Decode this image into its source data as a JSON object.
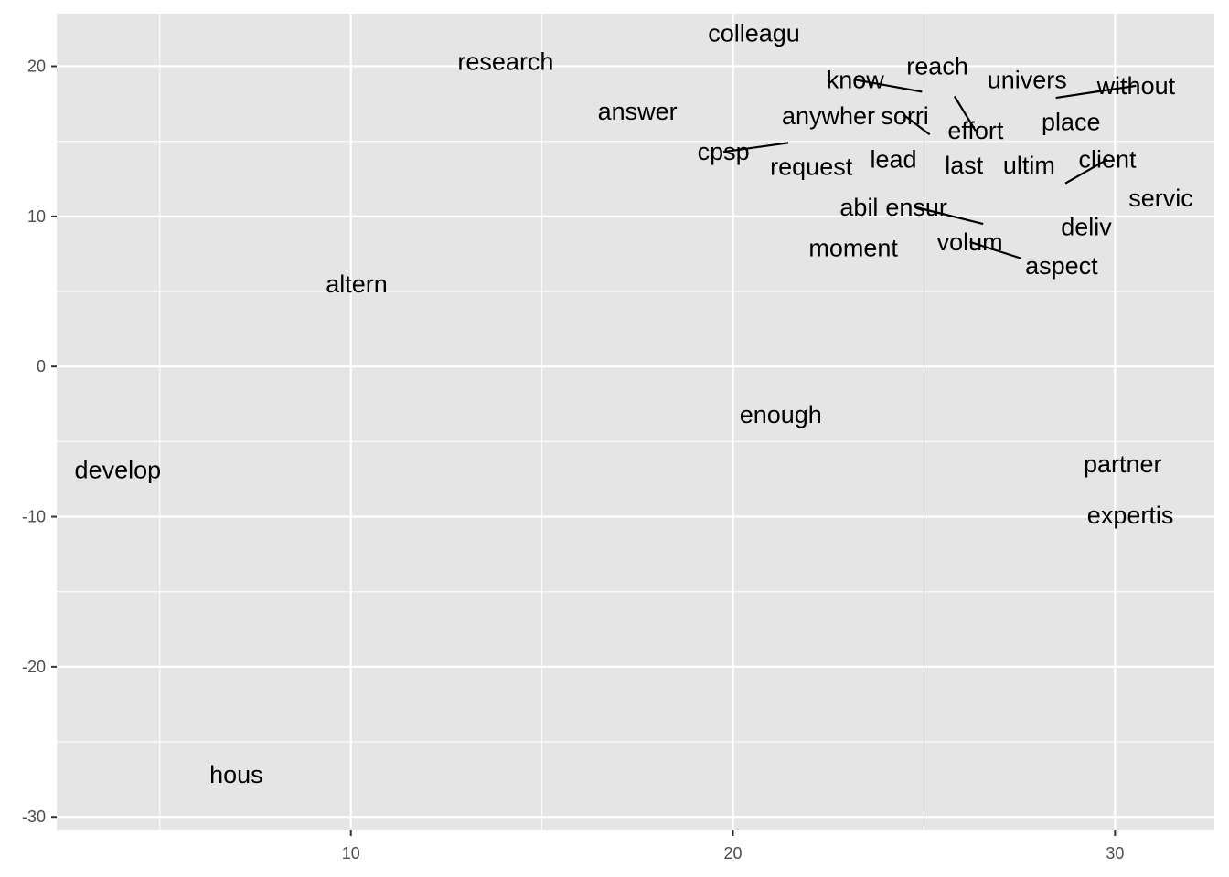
{
  "chart_data": {
    "type": "scatter",
    "title": "",
    "xlabel": "",
    "ylabel": "",
    "xlim": [
      2.3,
      32.6
    ],
    "ylim": [
      -30.9,
      23.5
    ],
    "x_ticks": [
      10,
      20,
      30
    ],
    "y_ticks": [
      -30,
      -20,
      -10,
      0,
      10,
      20
    ],
    "x_minor_ticks": [
      5,
      15,
      25
    ],
    "y_minor_ticks": [
      -25,
      -15,
      -5,
      5,
      15
    ],
    "grid": true,
    "legend": "none",
    "colors": {
      "panel": "#e5e5e5",
      "grid": "#ffffff",
      "text": "#000000",
      "tick": "#4d4d4d"
    },
    "points": [
      {
        "label": "colleagu",
        "x": 20.55,
        "y": 22.2
      },
      {
        "label": "research",
        "x": 14.05,
        "y": 20.3
      },
      {
        "label": "reach",
        "x": 25.35,
        "y": 20.0
      },
      {
        "label": "know",
        "x": 23.2,
        "y": 19.1,
        "leader_to": [
          24.95,
          18.3
        ]
      },
      {
        "label": "univers",
        "x": 27.7,
        "y": 19.1
      },
      {
        "label": "without",
        "x": 30.55,
        "y": 18.7,
        "leader_to": [
          28.45,
          17.9
        ]
      },
      {
        "label": "answer",
        "x": 17.5,
        "y": 17.0
      },
      {
        "label": "anywher",
        "x": 22.5,
        "y": 16.7
      },
      {
        "label": "sorri",
        "x": 24.5,
        "y": 16.7,
        "leader_to": [
          25.15,
          15.45
        ]
      },
      {
        "label": "place",
        "x": 28.85,
        "y": 16.3
      },
      {
        "label": "effort",
        "x": 26.35,
        "y": 15.7,
        "leader_to": [
          25.8,
          18.0
        ]
      },
      {
        "label": "cpsp",
        "x": 19.75,
        "y": 14.3,
        "leader_to": [
          21.45,
          14.9
        ]
      },
      {
        "label": "client",
        "x": 29.8,
        "y": 13.8,
        "leader_to": [
          28.7,
          12.2
        ]
      },
      {
        "label": "lead",
        "x": 24.2,
        "y": 13.8
      },
      {
        "label": "request",
        "x": 22.05,
        "y": 13.3
      },
      {
        "label": "last",
        "x": 26.05,
        "y": 13.4
      },
      {
        "label": "ultim",
        "x": 27.75,
        "y": 13.4
      },
      {
        "label": "servic",
        "x": 31.2,
        "y": 11.2
      },
      {
        "label": "abil",
        "x": 23.3,
        "y": 10.6
      },
      {
        "label": "ensur",
        "x": 24.8,
        "y": 10.6,
        "leader_to": [
          26.55,
          9.5
        ]
      },
      {
        "label": "deliv",
        "x": 29.25,
        "y": 9.3
      },
      {
        "label": "volum",
        "x": 26.2,
        "y": 8.3,
        "leader_to": [
          27.55,
          7.2
        ]
      },
      {
        "label": "moment",
        "x": 23.15,
        "y": 7.9
      },
      {
        "label": "aspect",
        "x": 28.6,
        "y": 6.7
      },
      {
        "label": "altern",
        "x": 10.15,
        "y": 5.5
      },
      {
        "label": "enough",
        "x": 21.25,
        "y": -3.2
      },
      {
        "label": "partner",
        "x": 30.2,
        "y": -6.5
      },
      {
        "label": "develop",
        "x": 3.9,
        "y": -6.9
      },
      {
        "label": "expertis",
        "x": 30.4,
        "y": -9.9
      },
      {
        "label": "hous",
        "x": 7.0,
        "y": -27.2
      }
    ]
  }
}
